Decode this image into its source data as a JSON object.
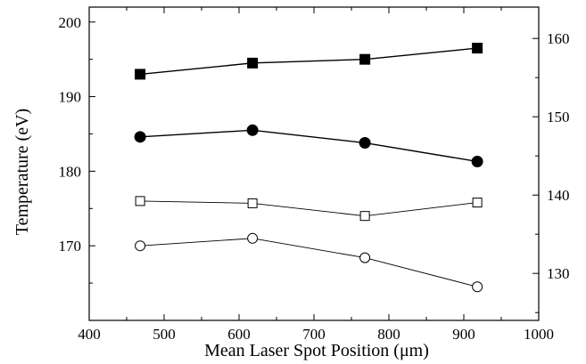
{
  "chart_data": {
    "type": "line",
    "title": "",
    "xlabel": "Mean Laser Spot Position (μm)",
    "ylabel": "Temperature (eV)",
    "xlim": [
      400,
      1000
    ],
    "ylim_left": [
      160,
      202
    ],
    "ylim_right": [
      124,
      164
    ],
    "x_ticks": [
      400,
      500,
      600,
      700,
      800,
      900,
      1000
    ],
    "y_left_ticks": [
      170,
      180,
      190,
      200
    ],
    "y_right_ticks": [
      130,
      140,
      150,
      160
    ],
    "legend": "none",
    "grid": false,
    "series": [
      {
        "marker": "filled-square",
        "axis": "left",
        "color": "#000000",
        "x": [
          468,
          618,
          768,
          918
        ],
        "y": [
          193.0,
          194.5,
          195.0,
          196.5
        ]
      },
      {
        "marker": "filled-circle",
        "axis": "left",
        "color": "#000000",
        "x": [
          468,
          618,
          768,
          918
        ],
        "y": [
          184.6,
          185.5,
          183.8,
          181.3
        ]
      },
      {
        "marker": "open-square",
        "axis": "left",
        "color": "#000000",
        "x": [
          468,
          618,
          768,
          918
        ],
        "y": [
          176.0,
          175.7,
          174.0,
          175.8
        ]
      },
      {
        "marker": "open-circle",
        "axis": "left",
        "color": "#000000",
        "x": [
          468,
          618,
          768,
          918
        ],
        "y": [
          170.0,
          171.0,
          168.4,
          164.5
        ]
      }
    ]
  }
}
